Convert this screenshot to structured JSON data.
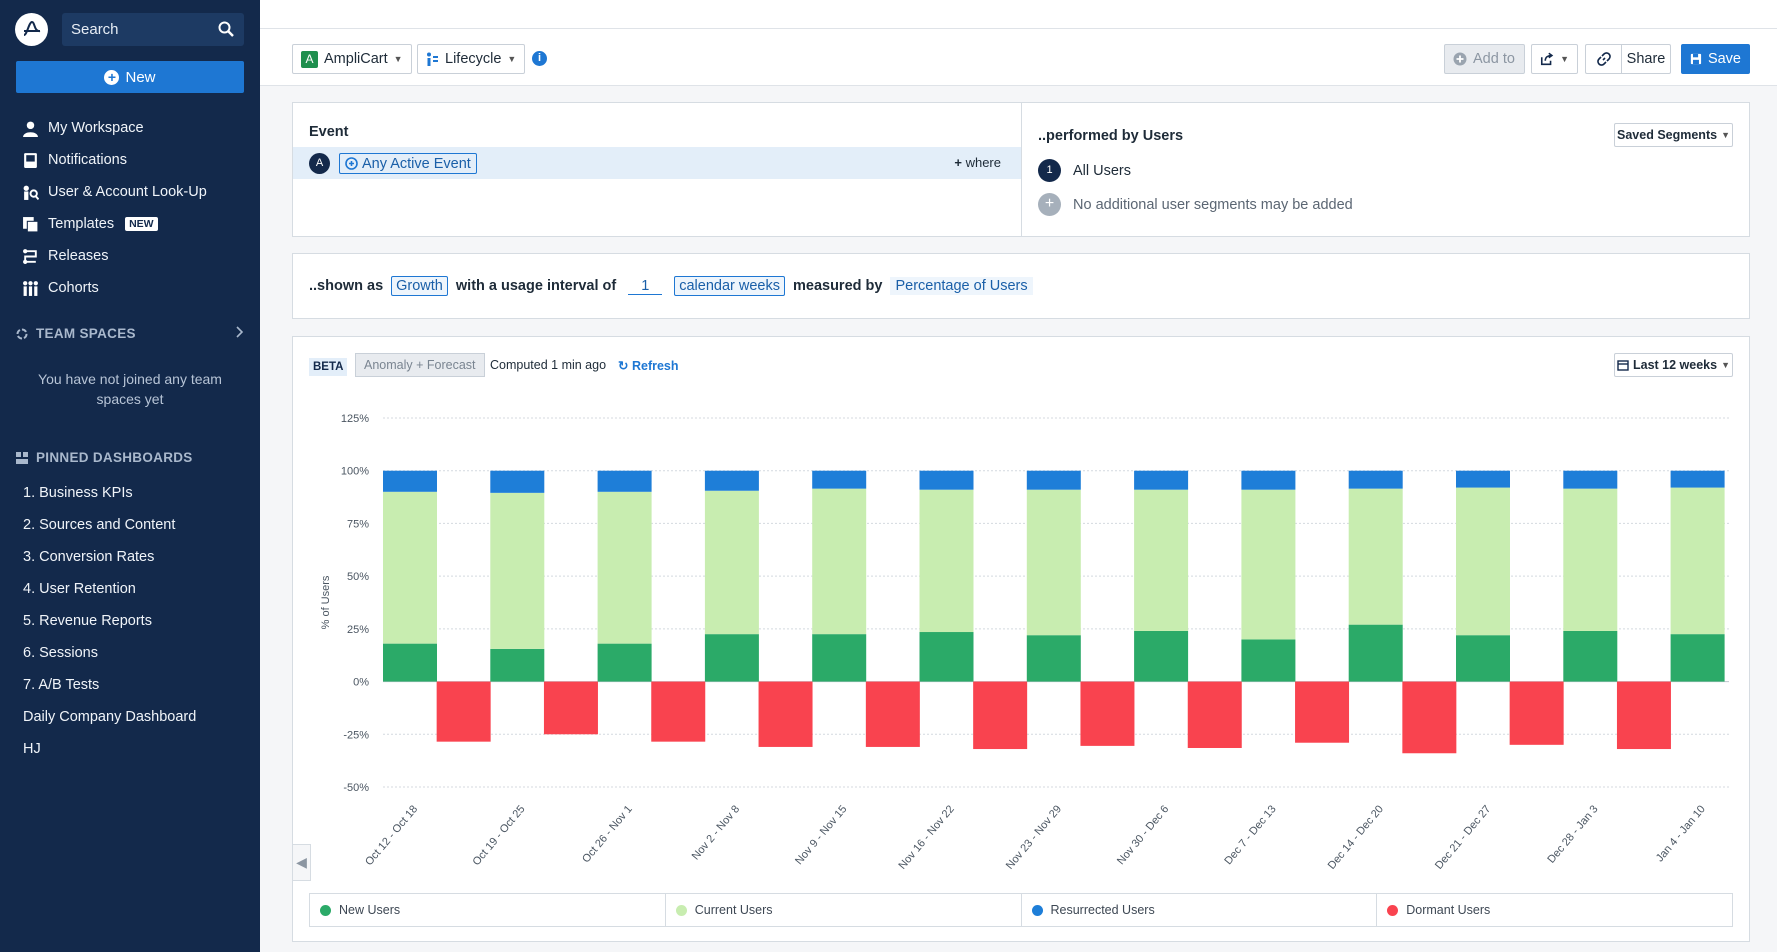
{
  "sidebar": {
    "search_placeholder": "Search",
    "new_label": "New",
    "nav": [
      {
        "label": "My Workspace",
        "icon": "person-icon"
      },
      {
        "label": "Notifications",
        "icon": "inbox-icon"
      },
      {
        "label": "User & Account Look-Up",
        "icon": "user-lookup-icon"
      },
      {
        "label": "Templates",
        "icon": "templates-icon",
        "badge": "NEW"
      },
      {
        "label": "Releases",
        "icon": "releases-icon"
      },
      {
        "label": "Cohorts",
        "icon": "cohorts-icon"
      }
    ],
    "team_spaces_title": "TEAM SPACES",
    "team_spaces_empty": "You have not joined any team spaces yet",
    "pinned_title": "PINNED DASHBOARDS",
    "pinned": [
      "1. Business KPIs",
      "2. Sources and Content",
      "3. Conversion Rates",
      "4. User Retention",
      "5. Revenue Reports",
      "6. Sessions",
      "7. A/B Tests",
      "Daily Company Dashboard",
      "HJ"
    ]
  },
  "toolbar": {
    "project_letter": "A",
    "project": "AmpliCart",
    "chart_type": "Lifecycle",
    "add_to": "Add to",
    "share": "Share",
    "save": "Save"
  },
  "event": {
    "title": "Event",
    "letter": "A",
    "name": "Any Active Event",
    "where": "where",
    "users_title": "..performed by Users",
    "saved_segments": "Saved Segments",
    "segment_num": "1",
    "segment_name": "All Users",
    "segment_note": "No additional user segments may be added"
  },
  "shown": {
    "prefix": "..shown as",
    "mode": "Growth",
    "interval_label": "with a usage interval of",
    "interval": "1",
    "unit": "calendar weeks",
    "measured_label": "measured by",
    "measure": "Percentage of Users"
  },
  "chart_header": {
    "beta": "BETA",
    "anomaly": "Anomaly + Forecast",
    "computed": "Computed 1 min ago",
    "refresh": "Refresh",
    "range": "Last 12 weeks"
  },
  "colors": {
    "new": "#2baa68",
    "current": "#c8edb0",
    "resurrected": "#1e7ed8",
    "dormant": "#f9434f",
    "sidebar": "#13294b",
    "accent": "#1e77d3"
  },
  "chart_data": {
    "type": "bar",
    "ylabel": "% of Users",
    "ylim": [
      -50,
      125
    ],
    "yticks": [
      "125%",
      "100%",
      "75%",
      "50%",
      "25%",
      "0%",
      "-25%",
      "-50%"
    ],
    "categories": [
      "Oct 12 - Oct 18",
      "Oct 19 - Oct 25",
      "Oct 26 - Nov 1",
      "Nov 2 - Nov 8",
      "Nov 9 - Nov 15",
      "Nov 16 - Nov 22",
      "Nov 23 - Nov 29",
      "Nov 30 - Dec 6",
      "Dec 7 - Dec 13",
      "Dec 14 - Dec 20",
      "Dec 21 - Dec 27",
      "Dec 28 - Jan 3",
      "Jan 4 - Jan 10"
    ],
    "series": [
      {
        "name": "New Users",
        "values": [
          18,
          15.5,
          18,
          22.5,
          22.5,
          23.5,
          22,
          24,
          20,
          27,
          22,
          24,
          22.5
        ]
      },
      {
        "name": "Current Users",
        "values": [
          72,
          74,
          72,
          68,
          69,
          67.5,
          69,
          67,
          71,
          64.5,
          70,
          67.5,
          69.5
        ]
      },
      {
        "name": "Resurrected Users",
        "values": [
          10,
          10.5,
          10,
          9.5,
          8.5,
          9,
          9,
          9,
          9,
          8.5,
          8,
          8.5,
          8
        ]
      },
      {
        "name": "Dormant Users",
        "values": [
          null,
          -28.5,
          -25,
          -28.5,
          -31,
          -31,
          -32,
          -30.5,
          -31.5,
          -29,
          -34,
          -30,
          -32
        ]
      }
    ]
  }
}
